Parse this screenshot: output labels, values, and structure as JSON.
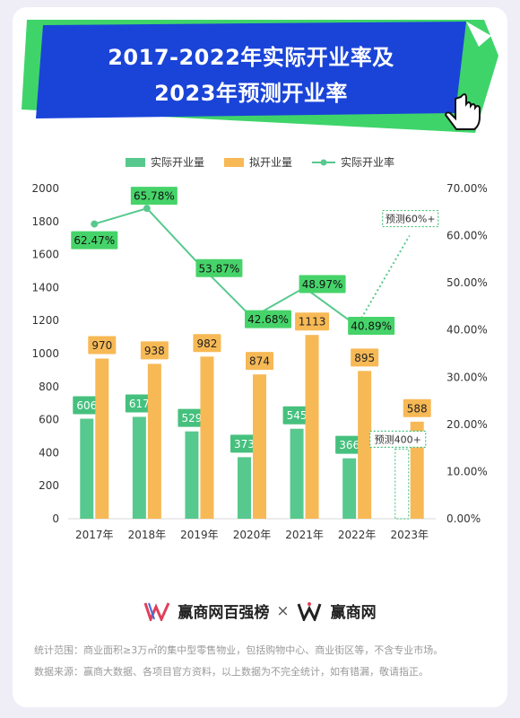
{
  "title": {
    "line1": "2017-2022年实际开业率及",
    "line2": "2023年预测开业率"
  },
  "colors": {
    "actual_bar": "#57c98e",
    "planned_bar": "#f7b955",
    "rate_line": "#57c98e",
    "label_green": "#46d36a",
    "banner_blue": "#1a44d8",
    "banner_green": "#3fd46a"
  },
  "legend": {
    "actual": "实际开业量",
    "planned": "拟开业量",
    "rate": "实际开业率"
  },
  "chart_data": {
    "type": "bar",
    "categories": [
      "2017年",
      "2018年",
      "2019年",
      "2020年",
      "2021年",
      "2022年",
      "2023年"
    ],
    "series": [
      {
        "name": "实际开业量",
        "type": "bar",
        "axis": "left",
        "values": [
          606,
          617,
          529,
          373,
          545,
          366,
          null
        ],
        "labels": [
          "606",
          "617",
          "529",
          "373",
          "545",
          "366",
          ""
        ]
      },
      {
        "name": "拟开业量",
        "type": "bar",
        "axis": "left",
        "values": [
          970,
          938,
          982,
          874,
          1113,
          895,
          588
        ],
        "labels": [
          "970",
          "938",
          "982",
          "874",
          "1113",
          "895",
          "588"
        ]
      },
      {
        "name": "实际开业率",
        "type": "line",
        "axis": "right",
        "values": [
          62.47,
          65.78,
          53.87,
          42.68,
          48.97,
          40.89,
          60
        ],
        "labels": [
          "62.47%",
          "65.78%",
          "53.87%",
          "42.68%",
          "48.97%",
          "40.89%",
          ""
        ]
      }
    ],
    "forecast": {
      "rate_label": "预测60%+",
      "opening_label": "预测400+",
      "rate_value": 60,
      "opening_value": 400
    },
    "left_axis": {
      "ylim": [
        0,
        2000
      ],
      "ticks": [
        "0",
        "200",
        "400",
        "600",
        "800",
        "1000",
        "1200",
        "1400",
        "1600",
        "1800",
        "2000"
      ]
    },
    "right_axis": {
      "ylim": [
        0,
        70
      ],
      "ticks": [
        "0.00%",
        "10.00%",
        "20.00%",
        "30.00%",
        "40.00%",
        "50.00%",
        "60.00%",
        "70.00%"
      ]
    },
    "grid": false,
    "legend_position": "top-center"
  },
  "footer": {
    "brand_left": "赢商网百强榜",
    "times": "×",
    "brand_right": "赢商网",
    "note1": "统计范围：商业面积≥3万㎡的集中型零售物业，包括购物中心、商业街区等，不含专业市场。",
    "note2": "数据来源：赢商大数据、各项目官方资料，以上数据为不完全统计，如有错漏，敬请指正。"
  }
}
